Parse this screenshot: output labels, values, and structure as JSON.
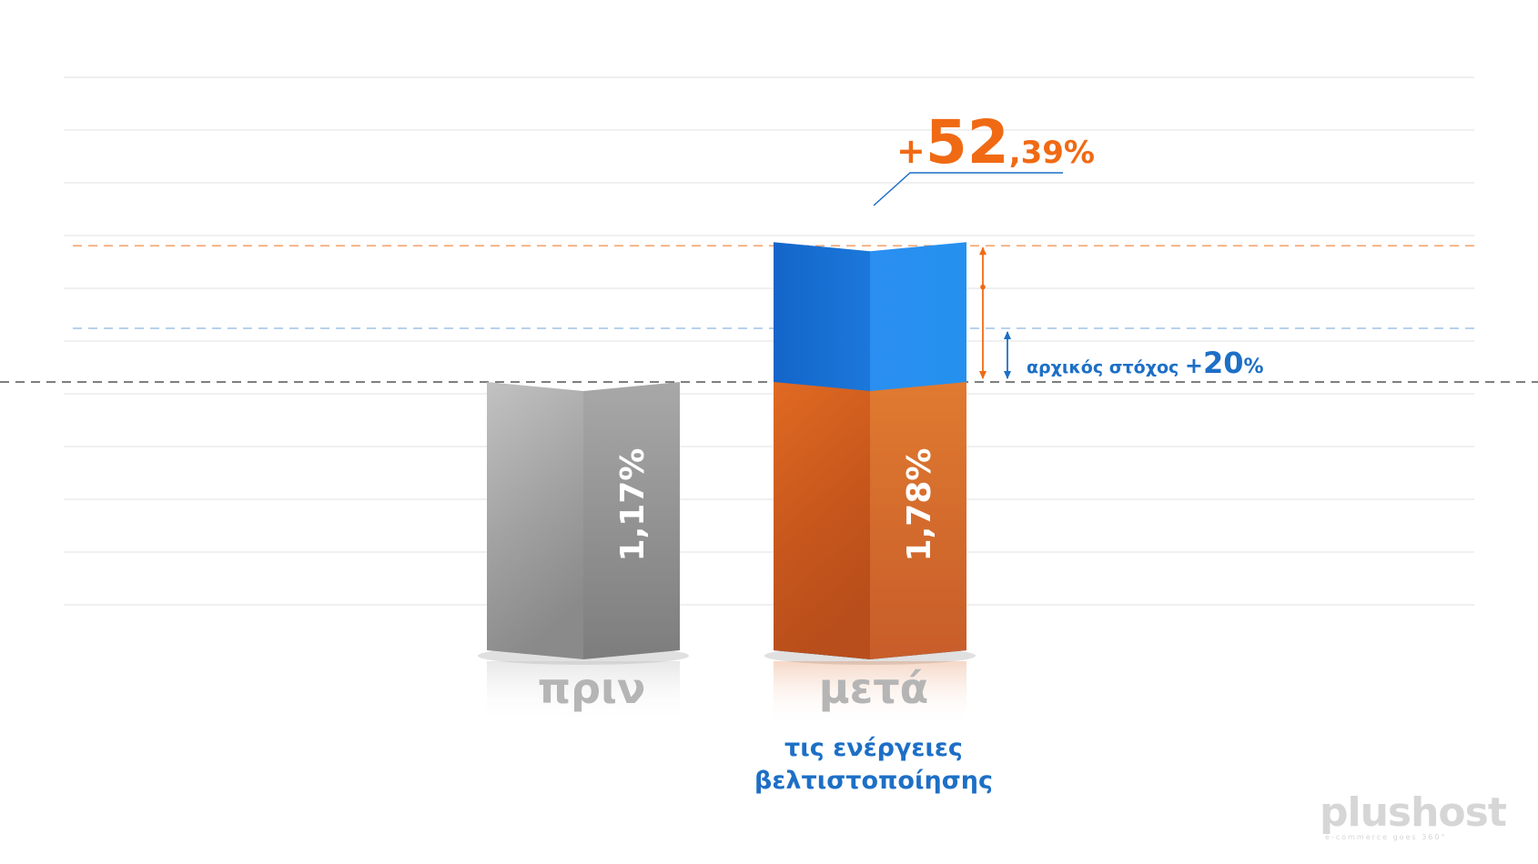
{
  "chart_data": {
    "type": "bar",
    "categories": [
      "πριν",
      "μετά"
    ],
    "values": [
      1.17,
      1.78
    ],
    "value_labels": [
      "1,17%",
      "1,78%"
    ],
    "subtitle_after": [
      "τις ενέργειες",
      "βελτιστοποίησης"
    ],
    "increase": {
      "plus": "+",
      "int": "52",
      "dec": ",39%"
    },
    "target": {
      "text": "αρχικός στόχος ",
      "plus": "+",
      "num": "20",
      "pct": "%"
    },
    "colors": {
      "before": "#9a9a9a",
      "after_base": "#d9621f",
      "after_gain": "#1f7fde",
      "accent_orange": "#f06a14",
      "accent_blue": "#1d6fc6"
    }
  },
  "logo": {
    "text": "plushost",
    "tagline": "e-commerce goes 360°"
  }
}
